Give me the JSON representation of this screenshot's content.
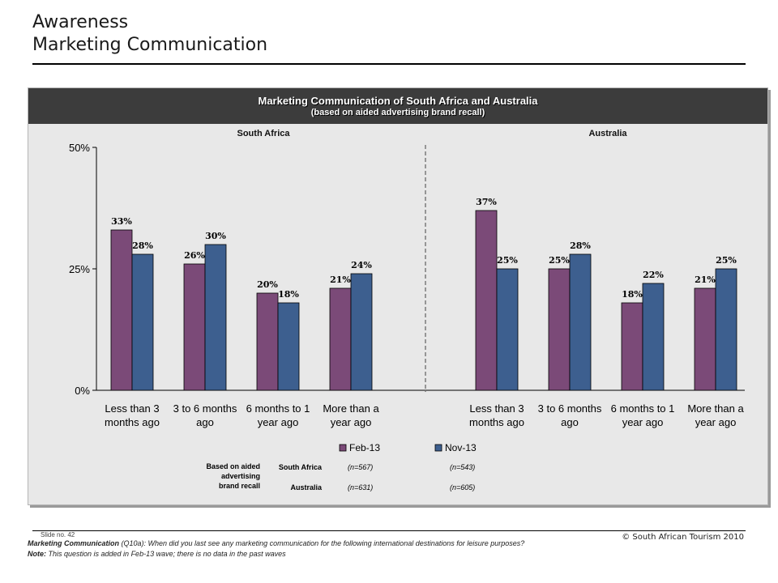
{
  "header": {
    "title_line1": "Awareness",
    "title_line2": "Marketing Communication"
  },
  "panel": {
    "title": "Marketing Communication of South Africa and Australia",
    "subtitle": "(based on aided advertising brand recall)"
  },
  "chart_data": {
    "type": "bar",
    "ylim": [
      0,
      50
    ],
    "yticks": [
      "0%",
      "25%",
      "50%"
    ],
    "grid": false,
    "legend_placement": "bottom",
    "panels": [
      {
        "title": "South Africa",
        "categories": [
          "Less than 3 months ago",
          "3 to 6 months ago",
          "6 months to 1 year ago",
          "More than a year ago"
        ],
        "series": [
          {
            "name": "Feb-13",
            "values": [
              33,
              26,
              20,
              21
            ],
            "labels": [
              "33%",
              "26%",
              "20%",
              "21%"
            ]
          },
          {
            "name": "Nov-13",
            "values": [
              28,
              30,
              18,
              24
            ],
            "labels": [
              "28%",
              "30%",
              "18%",
              "24%"
            ]
          }
        ]
      },
      {
        "title": "Australia",
        "categories": [
          "Less than 3 months ago",
          "3 to 6 months ago",
          "6 months to 1 year ago",
          "More than a year ago"
        ],
        "series": [
          {
            "name": "Feb-13",
            "values": [
              37,
              25,
              18,
              21
            ],
            "labels": [
              "37%",
              "25%",
              "18%",
              "21%"
            ]
          },
          {
            "name": "Nov-13",
            "values": [
              25,
              28,
              22,
              25
            ],
            "labels": [
              "25%",
              "28%",
              "22%",
              "25%"
            ]
          }
        ]
      }
    ],
    "colors": {
      "Feb-13": "#7b4a78",
      "Nov-13": "#3d5f8f"
    }
  },
  "base": {
    "label": "Based on aided advertising brand recall",
    "rows": [
      {
        "name": "South Africa",
        "feb": "(n=567)",
        "nov": "(n=543)"
      },
      {
        "name": "Australia",
        "feb": "(n=631)",
        "nov": "(n=605)"
      }
    ]
  },
  "footer": {
    "slide_no": "Slide no. 42",
    "copyright": "© South African Tourism 2010",
    "question_label": "Marketing Communication",
    "question_text": " (Q10a): When did you last see any marketing communication for the following international destinations for leisure purposes?",
    "note_label": "Note:",
    "note_text": " This question is added in Feb-13 wave; there is no data in the past waves"
  }
}
